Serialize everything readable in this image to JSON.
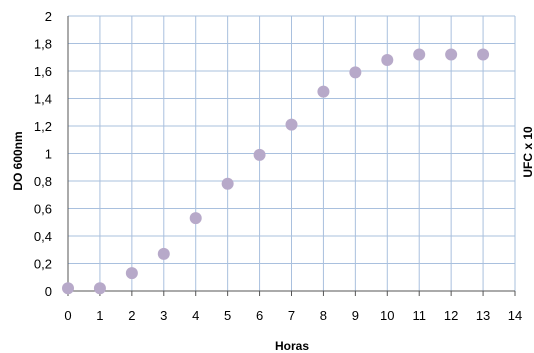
{
  "chart_data": {
    "type": "scatter",
    "title": "",
    "xlabel": "Horas",
    "ylabel": "DO 600nm",
    "right_label": "UFC x 10",
    "xlim": [
      0,
      14
    ],
    "ylim": [
      0,
      2
    ],
    "x_ticks": [
      "0",
      "1",
      "2",
      "3",
      "4",
      "5",
      "6",
      "7",
      "8",
      "9",
      "10",
      "11",
      "12",
      "13",
      "14"
    ],
    "y_ticks": [
      "0",
      "0,2",
      "0,4",
      "0,6",
      "0,8",
      "1",
      "1,2",
      "1,4",
      "1,6",
      "1,8",
      "2"
    ],
    "grid": true,
    "marker_color": "#b7a9c9",
    "grid_color": "#a9c0de",
    "axis_color": "#555555",
    "series": [
      {
        "x": [
          0,
          1,
          2,
          3,
          4,
          5,
          6,
          7,
          8,
          9,
          10,
          11,
          12,
          13
        ],
        "y": [
          0.02,
          0.02,
          0.13,
          0.27,
          0.53,
          0.78,
          0.99,
          1.21,
          1.45,
          1.59,
          1.68,
          1.72,
          1.72,
          1.72
        ]
      }
    ]
  }
}
